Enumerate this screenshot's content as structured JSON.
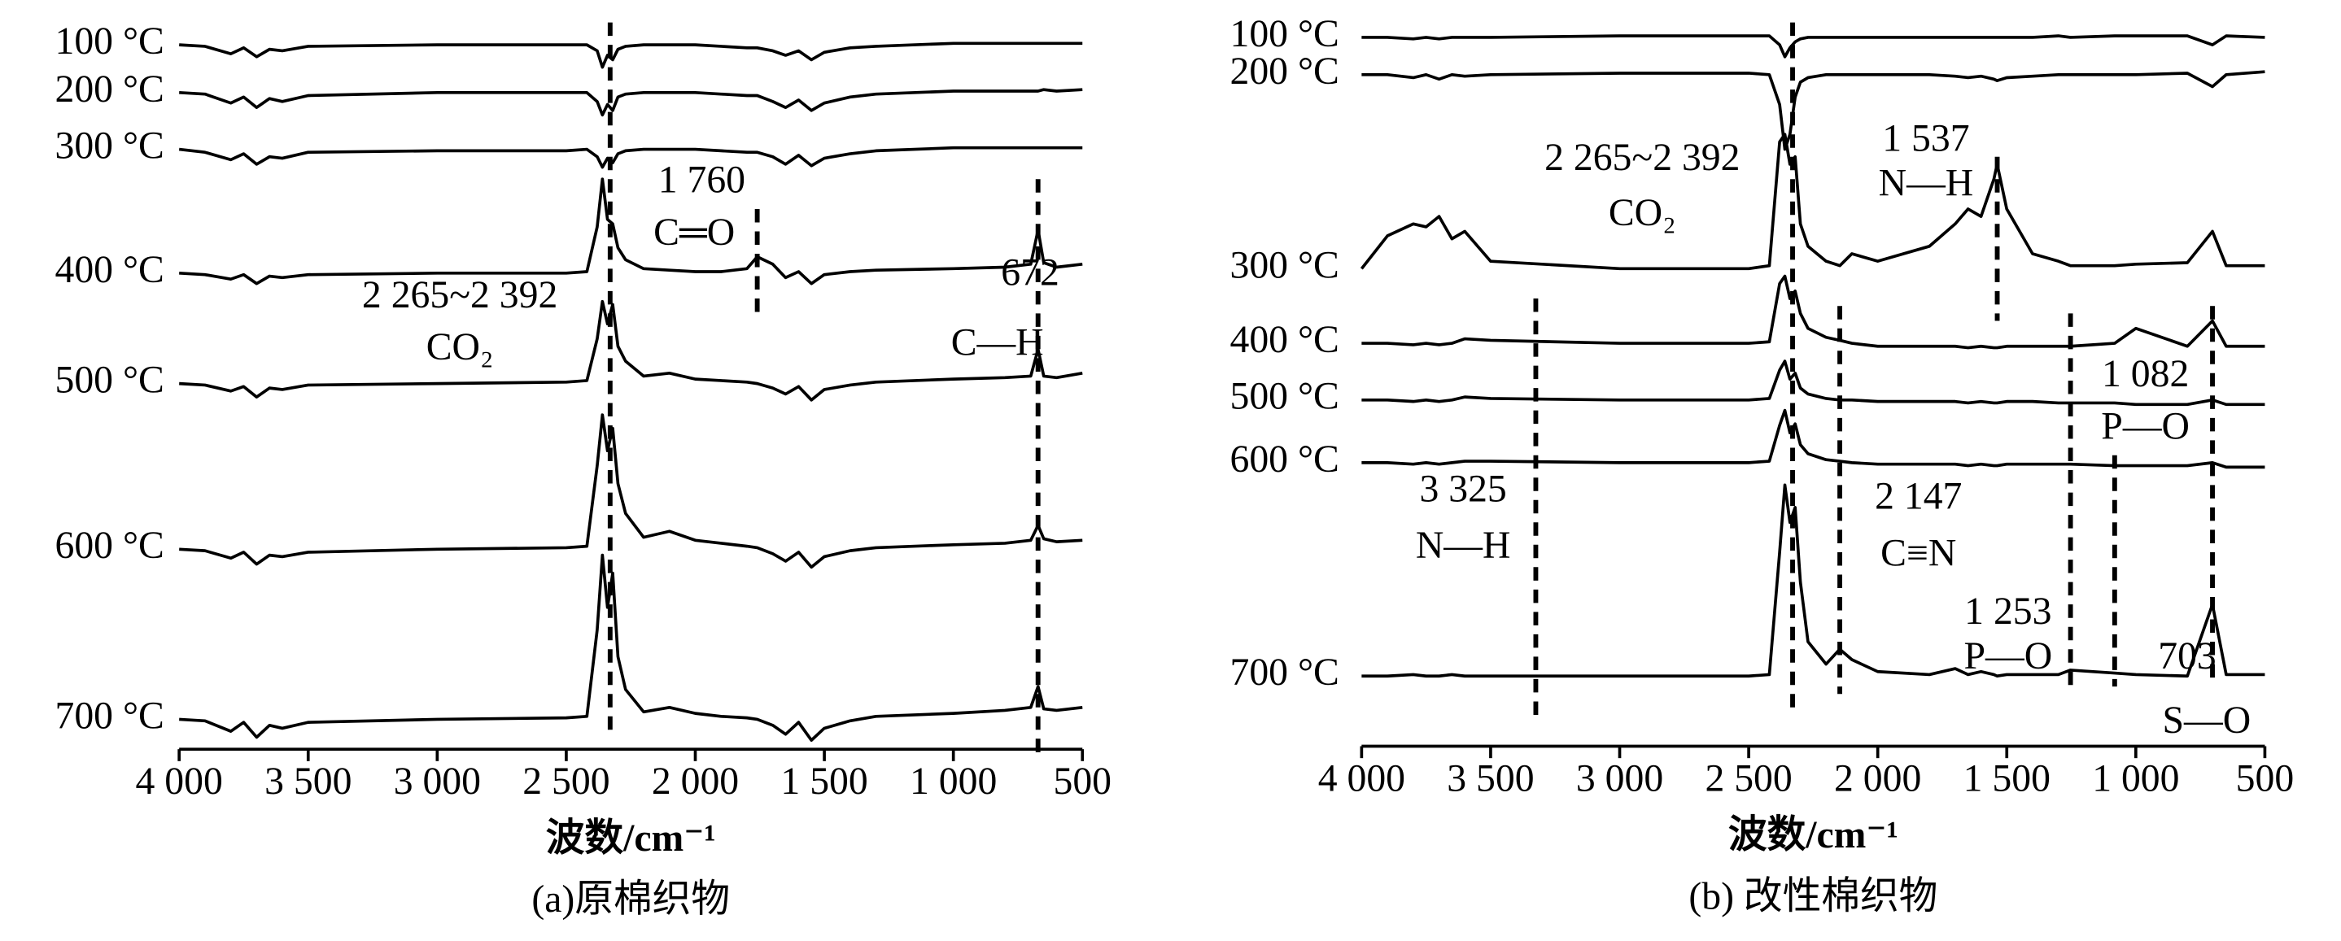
{
  "chart_data": [
    {
      "type": "line",
      "title": "(a)原棉织物",
      "x_label": "波数/cm⁻¹",
      "x": [
        4000,
        3900,
        3800,
        3750,
        3700,
        3650,
        3600,
        3500,
        3000,
        2500,
        2420,
        2380,
        2360,
        2340,
        2320,
        2300,
        2270,
        2200,
        2100,
        2000,
        1900,
        1800,
        1760,
        1700,
        1650,
        1600,
        1550,
        1500,
        1400,
        1300,
        1000,
        800,
        700,
        672,
        650,
        600,
        500
      ],
      "xlim": [
        4000,
        500
      ],
      "xticks": [
        {
          "value": 4000,
          "label": "4 000"
        },
        {
          "value": 3500,
          "label": "3 500"
        },
        {
          "value": 3000,
          "label": "3 000"
        },
        {
          "value": 2500,
          "label": "2 500"
        },
        {
          "value": 2000,
          "label": "2 000"
        },
        {
          "value": 1500,
          "label": "1 500"
        },
        {
          "value": 1000,
          "label": "1 000"
        },
        500
      ],
      "ylim": [
        0,
        500
      ],
      "series": [
        {
          "name": "100 °C",
          "color": "#000000",
          "values": [
            472,
            471,
            466,
            470,
            464,
            469,
            468,
            471,
            472,
            472,
            472,
            468,
            457,
            465,
            462,
            469,
            471,
            472,
            472,
            472,
            471,
            470,
            470,
            468,
            465,
            468,
            462,
            467,
            470,
            471,
            473,
            473,
            473,
            473,
            473,
            473,
            473
          ]
        },
        {
          "name": "200 °C",
          "color": "#000000",
          "values": [
            440,
            439,
            433,
            437,
            430,
            436,
            434,
            438,
            440,
            440,
            440,
            434,
            425,
            432,
            428,
            437,
            439,
            440,
            440,
            440,
            439,
            438,
            438,
            434,
            430,
            435,
            428,
            433,
            437,
            439,
            441,
            441,
            441,
            441,
            442,
            441,
            442
          ]
        },
        {
          "name": "300 °C",
          "color": "#000000",
          "values": [
            402,
            400,
            395,
            399,
            392,
            397,
            396,
            400,
            401,
            401,
            402,
            397,
            390,
            396,
            393,
            399,
            401,
            402,
            402,
            402,
            401,
            400,
            400,
            397,
            392,
            398,
            391,
            396,
            399,
            401,
            403,
            403,
            403,
            403,
            403,
            403,
            403
          ]
        },
        {
          "name": "400 °C",
          "color": "#000000",
          "values": [
            319,
            318,
            315,
            318,
            312,
            317,
            316,
            318,
            319,
            319,
            320,
            350,
            382,
            355,
            352,
            336,
            328,
            322,
            321,
            320,
            320,
            322,
            330,
            325,
            316,
            320,
            312,
            318,
            320,
            321,
            322,
            323,
            325,
            348,
            326,
            323,
            325
          ]
        },
        {
          "name": "500 °C",
          "color": "#000000",
          "values": [
            245,
            244,
            240,
            243,
            236,
            242,
            241,
            244,
            245,
            246,
            247,
            275,
            300,
            285,
            298,
            270,
            260,
            250,
            252,
            248,
            247,
            246,
            245,
            242,
            238,
            243,
            234,
            241,
            244,
            246,
            248,
            249,
            250,
            268,
            250,
            249,
            252
          ]
        },
        {
          "name": "600 °C",
          "color": "#000000",
          "values": [
            134,
            133,
            128,
            132,
            124,
            130,
            129,
            132,
            134,
            135,
            136,
            190,
            224,
            200,
            215,
            178,
            158,
            142,
            146,
            140,
            138,
            136,
            135,
            131,
            126,
            132,
            122,
            129,
            133,
            135,
            137,
            138,
            140,
            150,
            141,
            139,
            140
          ]
        },
        {
          "name": "700 °C",
          "color": "#000000",
          "values": [
            20,
            19,
            12,
            18,
            8,
            16,
            14,
            18,
            20,
            21,
            22,
            80,
            130,
            95,
            118,
            62,
            40,
            25,
            28,
            24,
            22,
            21,
            20,
            16,
            10,
            18,
            6,
            14,
            19,
            22,
            24,
            26,
            28,
            42,
            27,
            26,
            28
          ]
        }
      ],
      "marker_lines": [
        2330,
        1760,
        672
      ],
      "annotations": [
        "1 760",
        "C═O",
        "2 265~2 392",
        "CO₂",
        "672",
        "C—H"
      ]
    },
    {
      "type": "line",
      "title": "(b) 改性棉织物",
      "x_label": "波数/cm⁻¹",
      "x": [
        4000,
        3900,
        3800,
        3750,
        3700,
        3650,
        3600,
        3500,
        3000,
        2500,
        2420,
        2380,
        2360,
        2340,
        2320,
        2300,
        2270,
        2200,
        2147,
        2100,
        2000,
        1800,
        1700,
        1650,
        1600,
        1550,
        1537,
        1500,
        1400,
        1300,
        1253,
        1082,
        1000,
        800,
        703,
        650,
        500
      ],
      "xlim": [
        4000,
        500
      ],
      "xticks": [
        {
          "value": 4000,
          "label": "4 000"
        },
        {
          "value": 3500,
          "label": "3 500"
        },
        {
          "value": 3000,
          "label": "3 000"
        },
        {
          "value": 2500,
          "label": "2 500"
        },
        {
          "value": 2000,
          "label": "2 000"
        },
        {
          "value": 1500,
          "label": "1 500"
        },
        {
          "value": 1000,
          "label": "1 000"
        },
        500
      ],
      "ylim": [
        0,
        490
      ],
      "series": [
        {
          "name": "100 °C",
          "color": "#000000",
          "values": [
            465,
            465,
            464,
            465,
            464,
            465,
            465,
            465,
            466,
            466,
            466,
            460,
            452,
            458,
            462,
            464,
            465,
            465,
            465,
            465,
            465,
            465,
            465,
            465,
            465,
            465,
            465,
            465,
            465,
            466,
            465,
            466,
            466,
            466,
            460,
            466,
            465
          ]
        },
        {
          "name": "200 °C",
          "color": "#000000",
          "values": [
            440,
            440,
            438,
            440,
            437,
            440,
            439,
            440,
            441,
            441,
            440,
            420,
            390,
            400,
            425,
            435,
            438,
            440,
            440,
            440,
            440,
            440,
            439,
            438,
            439,
            437,
            436,
            438,
            439,
            440,
            440,
            440,
            440,
            441,
            432,
            440,
            442
          ]
        },
        {
          "name": "300 °C",
          "color": "#000000",
          "values": [
            310,
            332,
            340,
            338,
            345,
            330,
            335,
            315,
            310,
            310,
            312,
            395,
            400,
            380,
            385,
            340,
            325,
            315,
            312,
            320,
            315,
            325,
            340,
            350,
            345,
            370,
            380,
            350,
            320,
            315,
            312,
            312,
            313,
            314,
            335,
            312,
            312
          ]
        },
        {
          "name": "400 °C",
          "color": "#000000",
          "values": [
            260,
            260,
            259,
            260,
            259,
            260,
            263,
            262,
            260,
            260,
            261,
            300,
            305,
            290,
            295,
            280,
            270,
            264,
            262,
            260,
            258,
            258,
            258,
            257,
            258,
            257,
            257,
            258,
            258,
            258,
            258,
            260,
            270,
            258,
            275,
            258,
            258
          ]
        },
        {
          "name": "500 °C",
          "color": "#000000",
          "values": [
            222,
            222,
            221,
            222,
            221,
            222,
            224,
            223,
            222,
            222,
            223,
            242,
            248,
            236,
            240,
            230,
            226,
            223,
            222,
            222,
            221,
            221,
            221,
            220,
            221,
            220,
            220,
            221,
            221,
            220,
            220,
            220,
            219,
            219,
            222,
            219,
            219
          ]
        },
        {
          "name": "600 °C",
          "color": "#000000",
          "values": [
            180,
            180,
            179,
            180,
            179,
            180,
            181,
            181,
            180,
            180,
            181,
            205,
            215,
            200,
            206,
            192,
            186,
            182,
            181,
            180,
            179,
            179,
            179,
            178,
            179,
            178,
            178,
            179,
            179,
            179,
            179,
            178,
            178,
            178,
            180,
            177,
            177
          ]
        },
        {
          "name": "700 °C",
          "color": "#000000",
          "values": [
            37,
            37,
            38,
            37,
            37,
            38,
            37,
            37,
            37,
            37,
            38,
            120,
            165,
            140,
            150,
            100,
            60,
            45,
            55,
            48,
            40,
            38,
            42,
            38,
            40,
            38,
            37,
            38,
            38,
            38,
            41,
            39,
            38,
            37,
            85,
            38,
            38
          ]
        }
      ],
      "marker_lines": [
        2330,
        1537,
        3325,
        2147,
        1253,
        1082,
        703
      ],
      "annotations": [
        "2 265~2 392",
        "CO₂",
        "1 537",
        "N—H",
        "3 325",
        "N—H",
        "2 147",
        "C≡N",
        "1 253",
        "P—O",
        "1 082",
        "P—O",
        "703",
        "S—O"
      ]
    }
  ]
}
